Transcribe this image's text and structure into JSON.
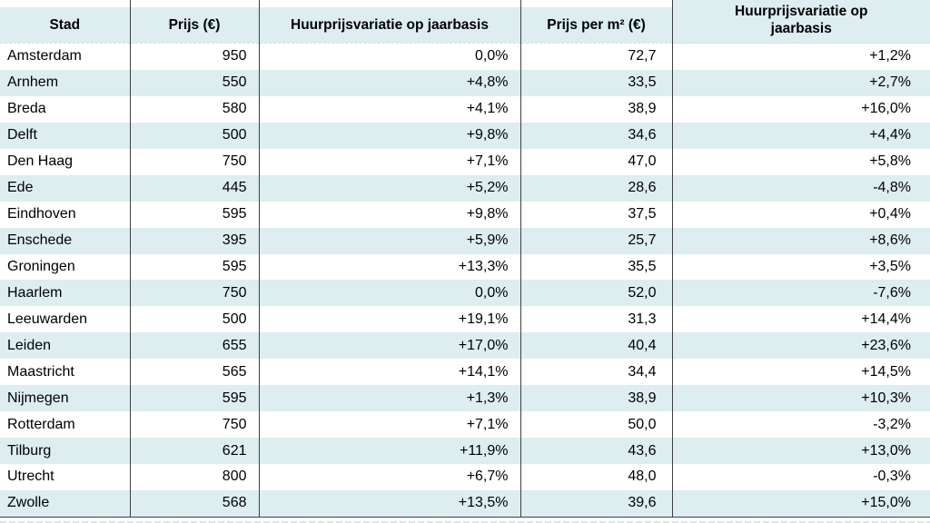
{
  "chart_data": {
    "type": "table",
    "columns": [
      "Stad",
      "Prijs (€)",
      "Huurprijsvariatie op jaarbasis",
      "Prijs per m² (€)",
      "Huurprijsvariatie op\njaarbasis"
    ],
    "rows": [
      [
        "Amsterdam",
        "950",
        "0,0%",
        "72,7",
        "+1,2%"
      ],
      [
        "Arnhem",
        "550",
        "+4,8%",
        "33,5",
        "+2,7%"
      ],
      [
        "Breda",
        "580",
        "+4,1%",
        "38,9",
        "+16,0%"
      ],
      [
        "Delft",
        "500",
        "+9,8%",
        "34,6",
        "+4,4%"
      ],
      [
        "Den Haag",
        "750",
        "+7,1%",
        "47,0",
        "+5,8%"
      ],
      [
        "Ede",
        "445",
        "+5,2%",
        "28,6",
        "-4,8%"
      ],
      [
        "Eindhoven",
        "595",
        "+9,8%",
        "37,5",
        "+0,4%"
      ],
      [
        "Enschede",
        "395",
        "+5,9%",
        "25,7",
        "+8,6%"
      ],
      [
        "Groningen",
        "595",
        "+13,3%",
        "35,5",
        "+3,5%"
      ],
      [
        "Haarlem",
        "750",
        "0,0%",
        "52,0",
        "-7,6%"
      ],
      [
        "Leeuwarden",
        "500",
        "+19,1%",
        "31,3",
        "+14,4%"
      ],
      [
        "Leiden",
        "655",
        "+17,0%",
        "40,4",
        "+23,6%"
      ],
      [
        "Maastricht",
        "565",
        "+14,1%",
        "34,4",
        "+14,5%"
      ],
      [
        "Nijmegen",
        "595",
        "+1,3%",
        "38,9",
        "+10,3%"
      ],
      [
        "Rotterdam",
        "750",
        "+7,1%",
        "50,0",
        "-3,2%"
      ],
      [
        "Tilburg",
        "621",
        "+11,9%",
        "43,6",
        "+13,0%"
      ],
      [
        "Utrecht",
        "800",
        "+6,7%",
        "48,0",
        "-0,3%"
      ],
      [
        "Zwolle",
        "568",
        "+13,5%",
        "39,6",
        "+15,0%"
      ]
    ],
    "layout": {
      "grid": "vertical-column-lines-and-alternating-row-shading",
      "legend": "none"
    }
  },
  "colors": {
    "header_row_bg": "#ddedf0",
    "row_alt_bg": "#ddedf0",
    "grid_line": "#3f3f3f",
    "dashed_strip": "#d5e9ec",
    "text": "#000000"
  }
}
